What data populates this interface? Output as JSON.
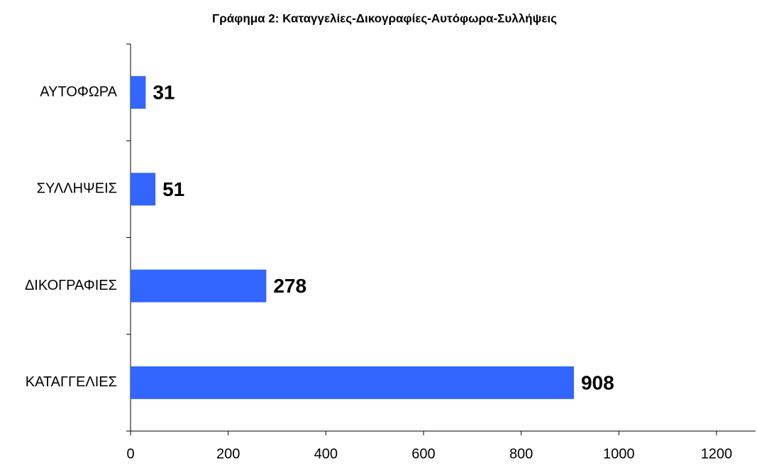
{
  "chart_data": {
    "type": "bar",
    "orientation": "horizontal",
    "title": "Γράφημα 2: Καταγγελίες-Δικογραφίες-Αυτόφωρα-Συλλήψεις",
    "categories": [
      "ΑΥΤΟΦΩΡΑ",
      "ΣΥΛΛΗΨΕΙΣ",
      "ΔΙΚΟΓΡΑΦΙΕΣ",
      "ΚΑΤΑΓΓΕΛΙΕΣ"
    ],
    "values": [
      31,
      51,
      278,
      908
    ],
    "color": "#3366ff",
    "xlim": [
      0,
      1280
    ],
    "xticks": [
      0,
      200,
      400,
      600,
      800,
      1000,
      1200
    ],
    "grid": false
  }
}
